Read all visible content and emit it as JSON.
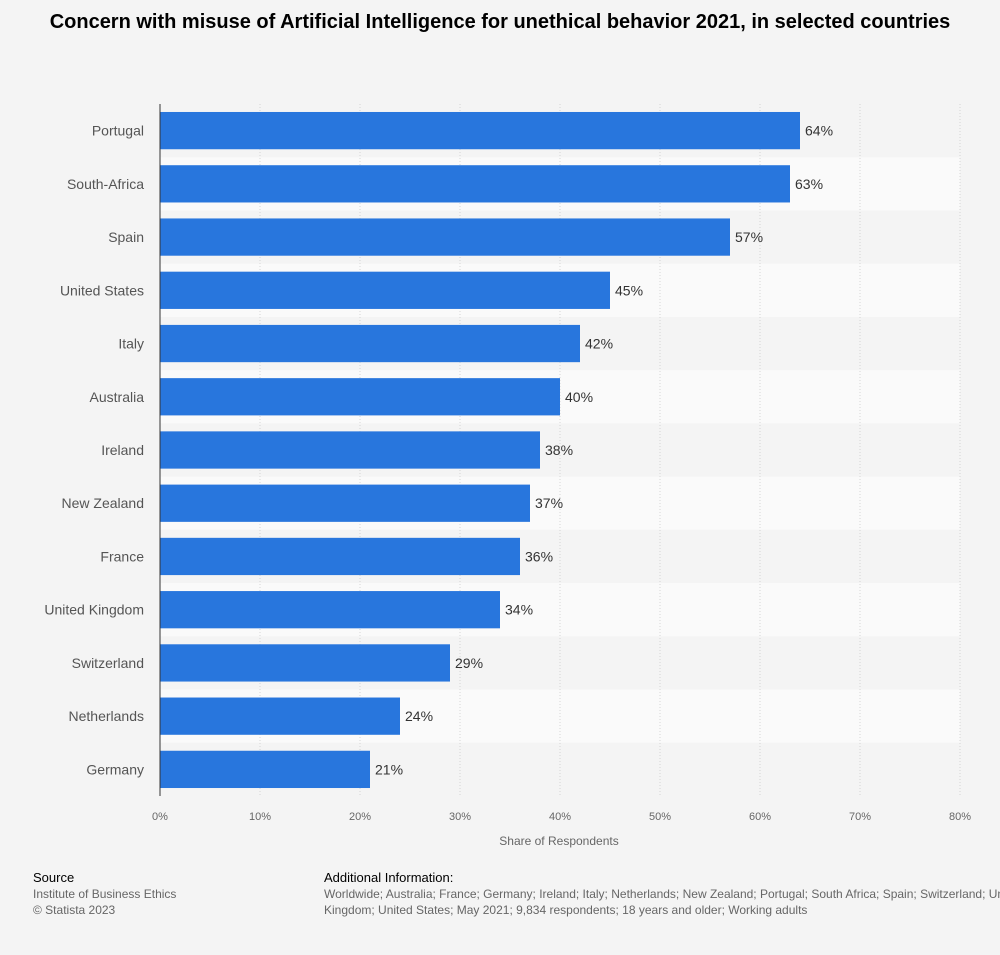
{
  "chart_data": {
    "type": "bar",
    "orientation": "horizontal",
    "title": "Concern with misuse of Artificial Intelligence for unethical behavior 2021, in selected countries",
    "categories": [
      "Portugal",
      "South-Africa",
      "Spain",
      "United States",
      "Italy",
      "Australia",
      "Ireland",
      "New Zealand",
      "France",
      "United Kingdom",
      "Switzerland",
      "Netherlands",
      "Germany"
    ],
    "values": [
      64,
      63,
      57,
      45,
      42,
      40,
      38,
      37,
      36,
      34,
      29,
      24,
      21
    ],
    "value_labels": [
      "64%",
      "63%",
      "57%",
      "45%",
      "42%",
      "40%",
      "38%",
      "37%",
      "36%",
      "34%",
      "29%",
      "24%",
      "21%"
    ],
    "xlabel": "Share of Respondents",
    "ylabel": "",
    "xlim": [
      0,
      80
    ],
    "xticks": [
      "0%",
      "10%",
      "20%",
      "30%",
      "40%",
      "50%",
      "60%",
      "70%",
      "80%"
    ],
    "grid": true,
    "bar_color": "#2876dd"
  },
  "footer": {
    "source_heading": "Source",
    "source_lines": [
      "Institute of Business Ethics",
      "© Statista 2023"
    ],
    "info_heading": "Additional Information:",
    "info_text": "Worldwide; Australia; France; Germany; Ireland; Italy; Netherlands; New Zealand; Portugal; South Africa; Spain; Switzerland; United Kingdom; United States; May 2021; 9,834 respondents; 18 years and older; Working adults"
  }
}
